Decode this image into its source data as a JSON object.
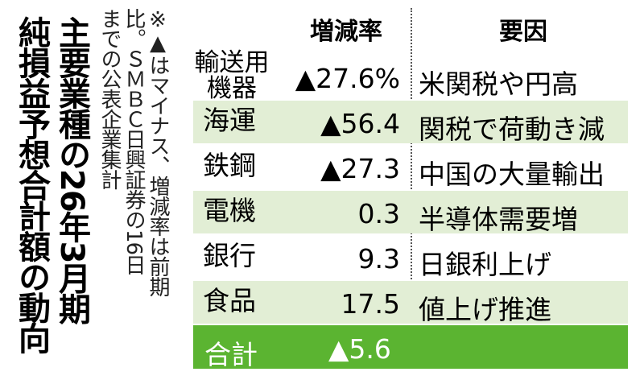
{
  "title": {
    "lines": [
      "主要業種の26年3月期",
      "純損益予想合計額の動向"
    ]
  },
  "note": {
    "lines": [
      "※▲はマイナス、増減率は前期",
      "比。ＳＭＢＣ日興証券の16日",
      "までの公表企業集計"
    ]
  },
  "table": {
    "header": [
      "増減率",
      "要因"
    ],
    "rows": [
      [
        "輸送用機器",
        "▲27.6%",
        "米関税や円高"
      ],
      [
        "海運",
        "▲56.4",
        "関税で荷動き減"
      ],
      [
        "鉄鋼",
        "▲27.3",
        "中国の大量輸出"
      ],
      [
        "電機",
        "0.3",
        "半導体需要増"
      ],
      [
        "銀行",
        "9.3",
        "日銀利上げ"
      ],
      [
        "食品",
        "17.5",
        "値上げ推進"
      ]
    ],
    "total": [
      "合計",
      "▲5.6"
    ]
  }
}
